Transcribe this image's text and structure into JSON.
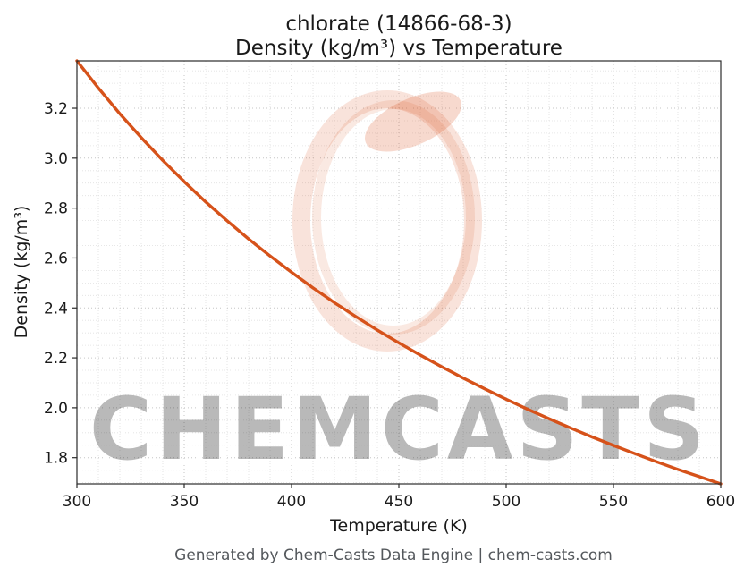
{
  "title": {
    "line1": "chlorate (14866-68-3)",
    "line2": "Density (kg/m³) vs Temperature"
  },
  "footer": "Generated by Chem-Casts Data Engine | chem-casts.com",
  "watermark": {
    "text": "CHEMCASTS",
    "logo": "brush-circle-logo",
    "color": "#d9531e"
  },
  "chart_data": {
    "type": "line",
    "title": "chlorate (14866-68-3) — Density (kg/m³) vs Temperature",
    "xlabel": "Temperature (K)",
    "ylabel": "Density (kg/m³)",
    "xlim": [
      300,
      600
    ],
    "ylim": [
      1.695,
      3.39
    ],
    "xticks": [
      300,
      350,
      400,
      450,
      500,
      550,
      600
    ],
    "yticks": [
      1.8,
      2.0,
      2.2,
      2.4,
      2.6,
      2.8,
      3.0,
      3.2
    ],
    "minor_x_step": 10,
    "minor_y_step": 0.05,
    "grid": true,
    "legend": "none",
    "line_color": "#d6521a",
    "series": [
      {
        "name": "Density (kg/m³)",
        "x": [
          300,
          310,
          320,
          330,
          340,
          350,
          360,
          370,
          380,
          390,
          400,
          410,
          420,
          430,
          440,
          450,
          460,
          470,
          480,
          490,
          500,
          510,
          520,
          530,
          540,
          550,
          560,
          570,
          580,
          590,
          600
        ],
        "y": [
          3.39,
          3.281,
          3.178,
          3.082,
          2.991,
          2.906,
          2.825,
          2.749,
          2.676,
          2.608,
          2.543,
          2.48,
          2.421,
          2.365,
          2.311,
          2.26,
          2.211,
          2.164,
          2.119,
          2.076,
          2.034,
          1.994,
          1.956,
          1.919,
          1.883,
          1.849,
          1.816,
          1.784,
          1.753,
          1.724,
          1.695
        ]
      }
    ]
  }
}
